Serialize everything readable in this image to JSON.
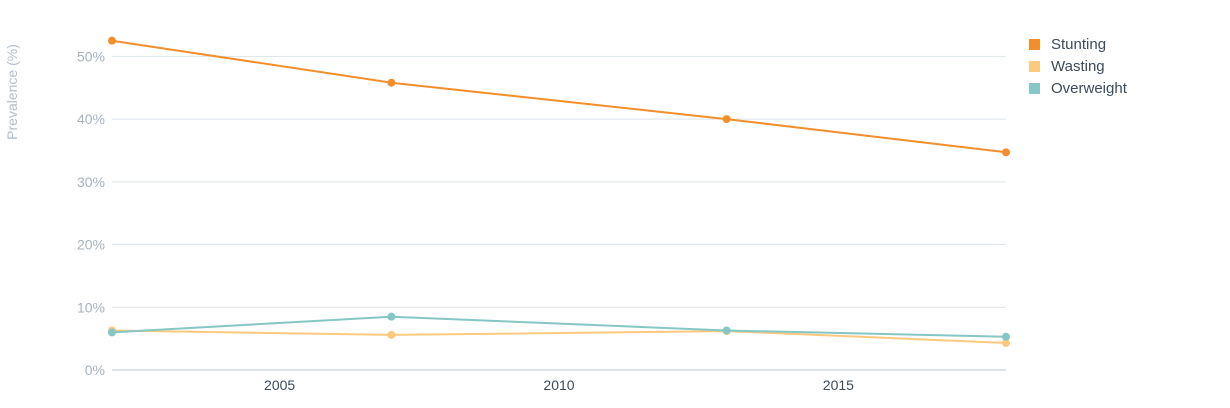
{
  "chart_data": {
    "type": "line",
    "ylabel": "Prevalence (%)",
    "xlabel": "",
    "title": "",
    "xlim": [
      2002,
      2018
    ],
    "ylim": [
      0,
      55
    ],
    "x_ticks": [
      2005,
      2010,
      2015
    ],
    "x_tick_labels": [
      "2005",
      "2010",
      "2015"
    ],
    "y_ticks": [
      0,
      10,
      20,
      30,
      40,
      50
    ],
    "y_tick_labels": [
      "0%",
      "10%",
      "20%",
      "30%",
      "40%",
      "50%"
    ],
    "grid": true,
    "legend_position": "top-right",
    "series": [
      {
        "name": "Stunting",
        "color": "#f28e2b",
        "points": [
          [
            2002,
            52.5
          ],
          [
            2007,
            45.8
          ],
          [
            2013,
            40.0
          ],
          [
            2018,
            34.7
          ]
        ]
      },
      {
        "name": "Wasting",
        "color": "#fcc97f",
        "points": [
          [
            2002,
            6.3
          ],
          [
            2007,
            5.6
          ],
          [
            2013,
            6.2
          ],
          [
            2018,
            4.3
          ]
        ]
      },
      {
        "name": "Overweight",
        "color": "#85c7c4",
        "points": [
          [
            2002,
            6.0
          ],
          [
            2007,
            8.5
          ],
          [
            2013,
            6.3
          ],
          [
            2018,
            5.3
          ]
        ]
      }
    ]
  }
}
